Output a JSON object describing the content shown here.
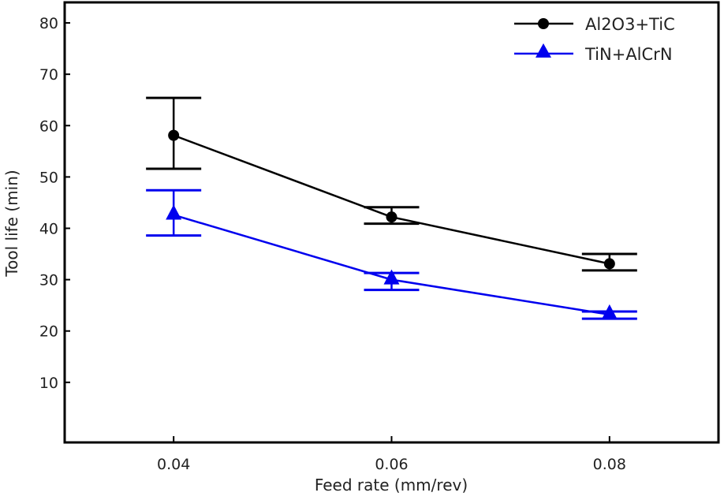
{
  "chart_data": {
    "type": "line",
    "title": "",
    "xlabel": "Feed rate (mm/rev)",
    "ylabel": "Tool life (min)",
    "xlim": [
      0.03,
      0.09
    ],
    "ylim": [
      -1.7,
      84
    ],
    "x_ticks": [
      "0.04",
      "0.06",
      "0.08"
    ],
    "y_ticks": [
      "10",
      "20",
      "30",
      "40",
      "50",
      "60",
      "70",
      "80"
    ],
    "grid": false,
    "legend_position": "top-right",
    "x": [
      0.04,
      0.06,
      0.08
    ],
    "series": [
      {
        "name": "Al2O3+TiC",
        "color": "#000000",
        "marker": "circle",
        "values": [
          58.1,
          42.2,
          33.1
        ],
        "error_low": [
          51.6,
          40.9,
          31.8
        ],
        "error_high": [
          65.4,
          44.1,
          35.0
        ]
      },
      {
        "name": "TiN+AlCrN",
        "color": "#0000ee",
        "marker": "triangle",
        "values": [
          42.6,
          30.0,
          23.2
        ],
        "error_low": [
          38.6,
          28.0,
          22.4
        ],
        "error_high": [
          47.4,
          31.3,
          23.8
        ]
      }
    ]
  }
}
